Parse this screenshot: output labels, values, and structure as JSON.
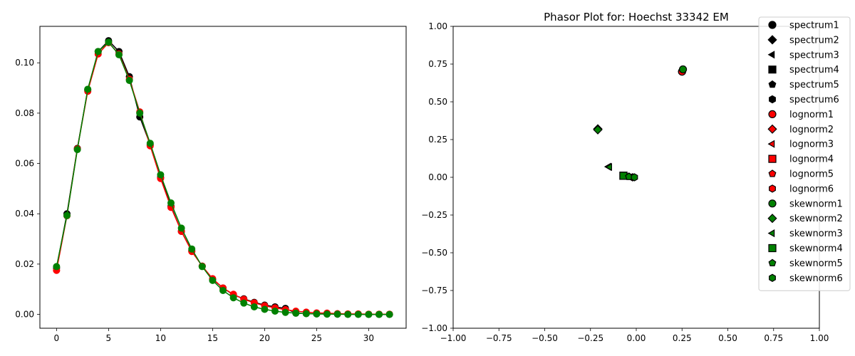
{
  "chart_data": [
    {
      "type": "line",
      "title": "",
      "xlabel": "",
      "ylabel": "",
      "xlim": [
        -1.6,
        33.6
      ],
      "ylim": [
        -0.0055,
        0.1145
      ],
      "xticks": [
        0,
        5,
        10,
        15,
        20,
        25,
        30
      ],
      "yticks": [
        0.0,
        0.02,
        0.04,
        0.06,
        0.08,
        0.1
      ],
      "xtick_labels": [
        "0",
        "5",
        "10",
        "15",
        "20",
        "25",
        "30"
      ],
      "ytick_labels": [
        "0.00",
        "0.02",
        "0.04",
        "0.06",
        "0.08",
        "0.10"
      ],
      "x": [
        0,
        1,
        2,
        3,
        4,
        5,
        6,
        7,
        8,
        9,
        10,
        11,
        12,
        13,
        14,
        15,
        16,
        17,
        18,
        19,
        20,
        21,
        22,
        23,
        24,
        25,
        26,
        27,
        28,
        29,
        30,
        31,
        32
      ],
      "series": [
        {
          "color": "#000000",
          "values": [
            0.0185,
            0.04,
            0.066,
            0.0893,
            0.1045,
            0.1088,
            0.1045,
            0.0945,
            0.0785,
            0.0675,
            0.0545,
            0.043,
            0.033,
            0.0253,
            0.0192,
            0.014,
            0.0105,
            0.0078,
            0.0062,
            0.0048,
            0.0037,
            0.003,
            0.0024,
            0.0005,
            0.0003,
            0.0002,
            0.0002,
            0.0001,
            0.0001,
            0.0001,
            0.0,
            0.0,
            0.0
          ]
        },
        {
          "color": "#ff0000",
          "values": [
            0.0175,
            0.0392,
            0.0658,
            0.0887,
            0.1035,
            0.108,
            0.1035,
            0.0935,
            0.0805,
            0.067,
            0.054,
            0.0425,
            0.033,
            0.025,
            0.0192,
            0.0142,
            0.0105,
            0.008,
            0.006,
            0.0046,
            0.0034,
            0.0026,
            0.0019,
            0.0013,
            0.0009,
            0.0006,
            0.0005,
            0.0003,
            0.0002,
            0.0002,
            0.0001,
            0.0001,
            0.0001
          ]
        },
        {
          "color": "#008000",
          "values": [
            0.019,
            0.0393,
            0.0655,
            0.0895,
            0.1045,
            0.1082,
            0.1032,
            0.093,
            0.08,
            0.068,
            0.0555,
            0.0443,
            0.0343,
            0.026,
            0.019,
            0.0135,
            0.0095,
            0.0066,
            0.0045,
            0.003,
            0.002,
            0.0013,
            0.0008,
            0.0005,
            0.0003,
            0.0002,
            0.0001,
            0.0001,
            0.0,
            0.0,
            0.0,
            0.0,
            0.0
          ]
        }
      ]
    },
    {
      "type": "scatter",
      "title": "Phasor Plot for: Hoechst 33342 EM",
      "xlabel": "",
      "ylabel": "",
      "xlim": [
        -1.0,
        1.0
      ],
      "ylim": [
        -1.0,
        1.0
      ],
      "xticks": [
        -1.0,
        -0.75,
        -0.5,
        -0.25,
        0.0,
        0.25,
        0.5,
        0.75,
        1.0
      ],
      "yticks": [
        -1.0,
        -0.75,
        -0.5,
        -0.25,
        0.0,
        0.25,
        0.5,
        0.75,
        1.0
      ],
      "xtick_labels": [
        "−1.00",
        "−0.75",
        "−0.50",
        "−0.25",
        "0.00",
        "0.25",
        "0.50",
        "0.75",
        "1.00"
      ],
      "ytick_labels": [
        "−1.00",
        "−0.75",
        "−0.50",
        "−0.25",
        "0.00",
        "0.25",
        "0.50",
        "0.75",
        "1.00"
      ],
      "legend_position": "top-right",
      "series": [
        {
          "name": "spectrum1",
          "color": "#000000",
          "marker": "circle",
          "x": 0.25,
          "y": 0.7
        },
        {
          "name": "spectrum2",
          "color": "#000000",
          "marker": "diamond",
          "x": -0.21,
          "y": 0.32
        },
        {
          "name": "spectrum3",
          "color": "#000000",
          "marker": "triangle-left",
          "x": -0.15,
          "y": 0.07
        },
        {
          "name": "spectrum4",
          "color": "#000000",
          "marker": "square",
          "x": -0.07,
          "y": 0.01
        },
        {
          "name": "spectrum5",
          "color": "#000000",
          "marker": "pentagon",
          "x": -0.04,
          "y": 0.005
        },
        {
          "name": "spectrum6",
          "color": "#000000",
          "marker": "hexagon",
          "x": -0.02,
          "y": 0.0
        },
        {
          "name": "lognorm1",
          "color": "#ff0000",
          "marker": "circle",
          "x": 0.25,
          "y": 0.7
        },
        {
          "name": "lognorm2",
          "color": "#ff0000",
          "marker": "diamond",
          "x": -0.21,
          "y": 0.32
        },
        {
          "name": "lognorm3",
          "color": "#ff0000",
          "marker": "triangle-left",
          "x": -0.15,
          "y": 0.07
        },
        {
          "name": "lognorm4",
          "color": "#ff0000",
          "marker": "square",
          "x": -0.07,
          "y": 0.01
        },
        {
          "name": "lognorm5",
          "color": "#ff0000",
          "marker": "pentagon",
          "x": -0.04,
          "y": 0.005
        },
        {
          "name": "lognorm6",
          "color": "#ff0000",
          "marker": "hexagon",
          "x": -0.02,
          "y": 0.0
        },
        {
          "name": "skewnorm1",
          "color": "#008000",
          "marker": "circle",
          "x": 0.255,
          "y": 0.715
        },
        {
          "name": "skewnorm2",
          "color": "#008000",
          "marker": "diamond",
          "x": -0.21,
          "y": 0.315
        },
        {
          "name": "skewnorm3",
          "color": "#008000",
          "marker": "triangle-left",
          "x": -0.145,
          "y": 0.068
        },
        {
          "name": "skewnorm4",
          "color": "#008000",
          "marker": "square",
          "x": -0.07,
          "y": 0.01
        },
        {
          "name": "skewnorm5",
          "color": "#008000",
          "marker": "pentagon",
          "x": -0.04,
          "y": 0.004
        },
        {
          "name": "skewnorm6",
          "color": "#008000",
          "marker": "hexagon",
          "x": -0.01,
          "y": 0.0
        }
      ]
    }
  ]
}
